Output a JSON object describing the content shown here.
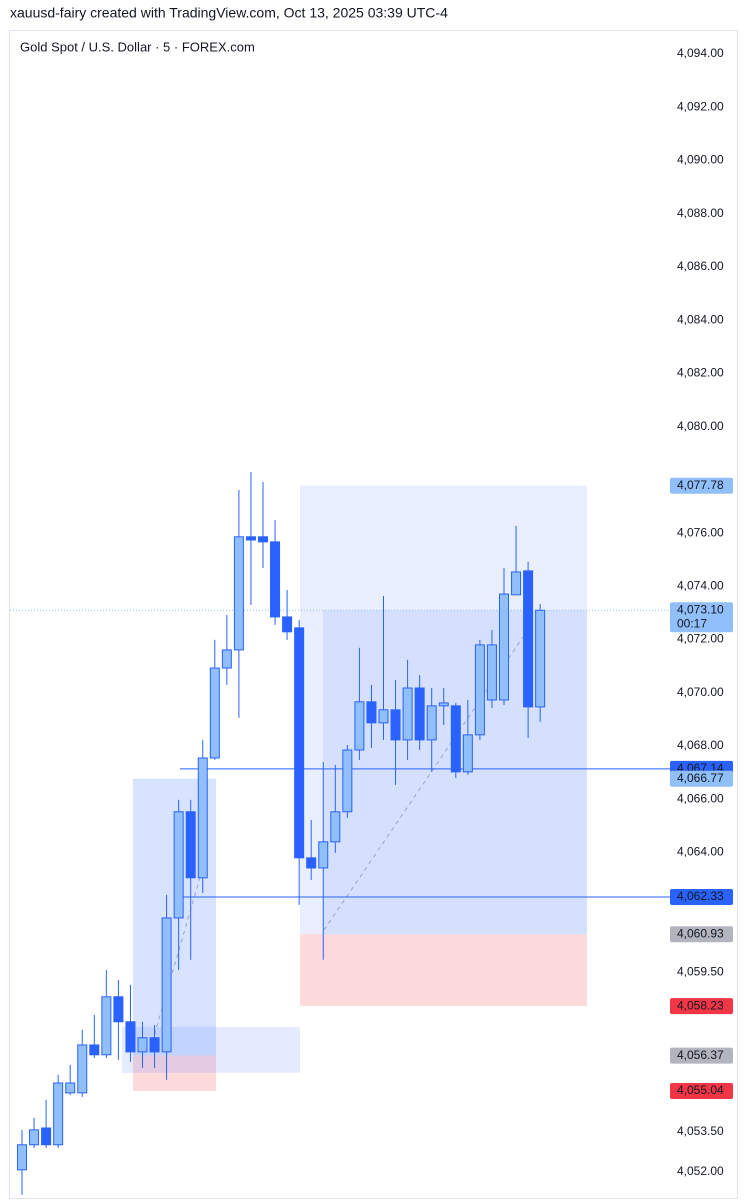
{
  "header": "xauusd-fairy created with TradingView.com, Oct 13, 2025 03:39 UTC-4",
  "chart_data": {
    "type": "candlestick",
    "title": "Gold Spot / U.S. Dollar · 5 · FOREX.com",
    "open": [
      4052.08,
      4053.02,
      4053.65,
      4053.02,
      4054.97,
      4054.97,
      4056.77,
      4056.4,
      4058.58,
      4057.64,
      4056.51,
      4057.04,
      4056.51,
      4061.54,
      4065.53,
      4063.05,
      4067.55,
      4070.93,
      4071.61,
      4075.86,
      4075.86,
      4075.67,
      4072.85,
      4072.44,
      4063.8,
      4063.42,
      4064.4,
      4065.53,
      4067.85,
      4069.66,
      4068.87,
      4069.36,
      4068.23,
      4070.18,
      4068.23,
      4069.51,
      4069.51,
      4067.03,
      4068.42,
      4069.73,
      4069.73,
      4073.68,
      4074.58,
      4069.47
    ],
    "high": [
      4053.58,
      4054.03,
      4054.71,
      4055.65,
      4056.02,
      4057.34,
      4057.9,
      4059.59,
      4059.21,
      4059.03,
      4057.64,
      4057.52,
      4062.41,
      4065.98,
      4065.98,
      4068.23,
      4071.99,
      4072.93,
      4077.62,
      4078.3,
      4077.92,
      4076.49,
      4073.86,
      4072.74,
      4065.22,
      4067.4,
      4067.29,
      4068.04,
      4071.69,
      4070.3,
      4073.64,
      4070.48,
      4071.24,
      4070.67,
      4070.18,
      4070.18,
      4069.62,
      4069.73,
      4071.99,
      4072.36,
      4074.69,
      4076.27,
      4074.92,
      4073.34
    ],
    "low": [
      4051.14,
      4052.9,
      4052.9,
      4052.9,
      4054.89,
      4054.82,
      4056.28,
      4056.28,
      4056.21,
      4056.13,
      4055.91,
      4055.91,
      4055.46,
      4059.59,
      4059.97,
      4062.48,
      4067.48,
      4070.3,
      4069.06,
      4073.3,
      4074.69,
      4072.55,
      4071.99,
      4062.03,
      4062.97,
      4059.97,
      4063.98,
      4065.3,
      4067.48,
      4067.93,
      4068.23,
      4066.54,
      4067.48,
      4067.85,
      4067.03,
      4068.79,
      4066.8,
      4066.92,
      4068.23,
      4069.43,
      4069.54,
      4073.68,
      4068.3,
      4068.91
    ],
    "close": [
      4053.02,
      4053.58,
      4053.02,
      4055.34,
      4055.34,
      4056.77,
      4056.4,
      4058.58,
      4057.64,
      4056.51,
      4057.04,
      4056.51,
      4061.54,
      4065.53,
      4063.05,
      4067.55,
      4070.93,
      4071.61,
      4075.86,
      4075.74,
      4075.67,
      4072.85,
      4072.29,
      4063.8,
      4063.42,
      4064.4,
      4065.53,
      4067.85,
      4069.66,
      4068.87,
      4069.36,
      4068.23,
      4070.18,
      4068.23,
      4069.51,
      4069.62,
      4067.03,
      4068.42,
      4071.8,
      4071.8,
      4073.71,
      4074.54,
      4069.47,
      4073.1
    ],
    "up_color": "#90bff9",
    "down_color": "#2962ff",
    "ylim": [
      4051.02,
      4094.9
    ],
    "yticks": [
      {
        "value": 4094,
        "label": "4,094.00"
      },
      {
        "value": 4092,
        "label": "4,092.00"
      },
      {
        "value": 4090,
        "label": "4,090.00"
      },
      {
        "value": 4088,
        "label": "4,088.00"
      },
      {
        "value": 4086,
        "label": "4,086.00"
      },
      {
        "value": 4084,
        "label": "4,084.00"
      },
      {
        "value": 4082,
        "label": "4,082.00"
      },
      {
        "value": 4080,
        "label": "4,080.00"
      },
      {
        "value": 4076,
        "label": "4,076.00"
      },
      {
        "value": 4074,
        "label": "4,074.00"
      },
      {
        "value": 4072,
        "label": "4,072.00"
      },
      {
        "value": 4070,
        "label": "4,070.00"
      },
      {
        "value": 4068,
        "label": "4,068.00"
      },
      {
        "value": 4066,
        "label": "4,066.00"
      },
      {
        "value": 4064,
        "label": "4,064.00"
      },
      {
        "value": 4059.5,
        "label": "4,059.50"
      },
      {
        "value": 4053.5,
        "label": "4,053.50"
      },
      {
        "value": 4052,
        "label": "4,052.00"
      }
    ],
    "grid": false,
    "price_labels": [
      {
        "value": 4077.78,
        "label": "4,077.78",
        "color": "#90bff9",
        "text_color": "#131722"
      },
      {
        "value": 4073.1,
        "label": "4,073.10",
        "color": "#90bff9",
        "text_color": "#131722",
        "countdown": "00:17"
      },
      {
        "value": 4067.14,
        "label": "4,067.14",
        "color": "#2962ff",
        "text_color": "#ffffff"
      },
      {
        "value": 4066.77,
        "label": "4,066.77",
        "color": "#90bff9",
        "text_color": "#131722"
      },
      {
        "value": 4062.33,
        "label": "4,062.33",
        "color": "#2962ff",
        "text_color": "#ffffff"
      },
      {
        "value": 4060.93,
        "label": "4,060.93",
        "color": "#b2b5be",
        "text_color": "#131722"
      },
      {
        "value": 4058.23,
        "label": "4,058.23",
        "color": "#f23645",
        "text_color": "#ffffff"
      },
      {
        "value": 4056.37,
        "label": "4,056.37",
        "color": "#b2b5be",
        "text_color": "#131722"
      },
      {
        "value": 4055.04,
        "label": "4,055.04",
        "color": "#f23645",
        "text_color": "#ffffff"
      }
    ],
    "zones": [
      {
        "top": 4057.45,
        "bottom": 4055.72
      }
    ]
  }
}
